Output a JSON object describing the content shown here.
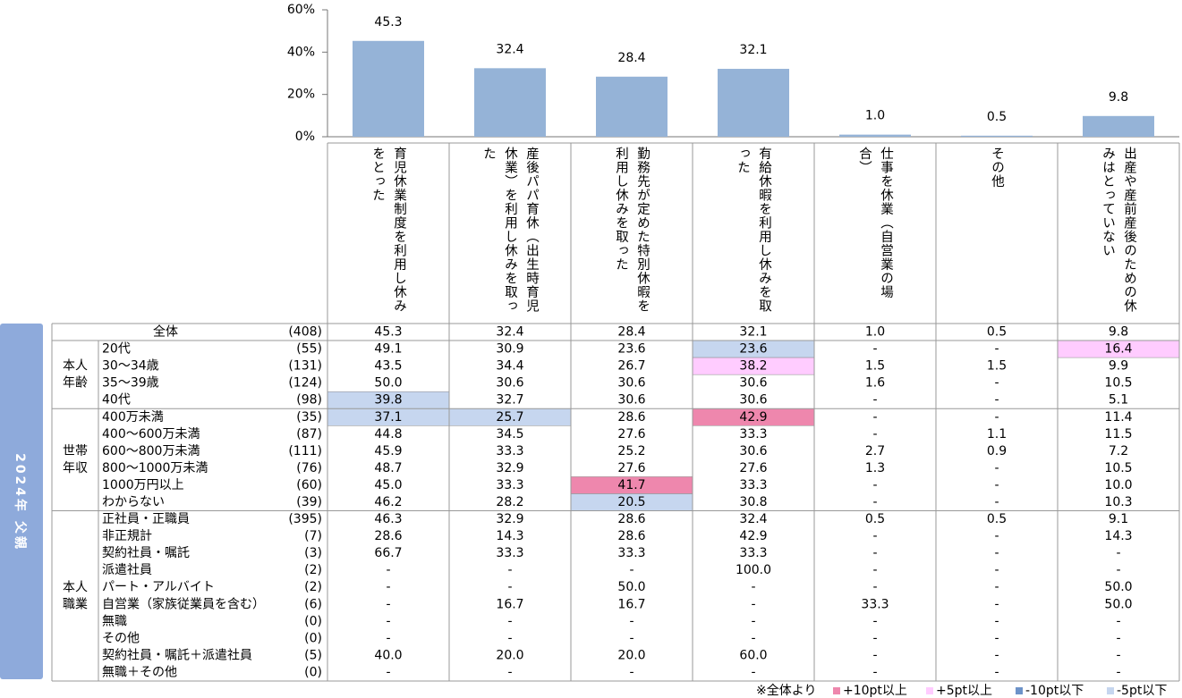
{
  "chart_data": {
    "type": "bar",
    "categories": [
      "育児休業制度を利用し休みをとった",
      "産後パパ育休（出生時育児休業）を利用し休みを取った",
      "勤務先が定めた特別休暇を利用し休みを取った",
      "有給休暇を利用し休みを取った",
      "仕事を休業（自営業の場合）",
      "その他",
      "出産や産前産後のための休みはとっていない"
    ],
    "values": [
      45.3,
      32.4,
      28.4,
      32.1,
      1.0,
      0.5,
      9.8
    ],
    "value_labels": [
      "45.3",
      "32.4",
      "28.4",
      "32.1",
      "1.0",
      "0.5",
      "9.8"
    ],
    "color": "#95b3d7",
    "ylim": [
      0,
      60
    ],
    "yticks": [
      {
        "value": 0,
        "label": "0%"
      },
      {
        "value": 20,
        "label": "20%"
      },
      {
        "value": 40,
        "label": "40%"
      },
      {
        "value": 60,
        "label": "60%"
      }
    ]
  },
  "side_label": "2024年 父親",
  "legend": {
    "title": "※全体より",
    "items": [
      {
        "name": "+10pt以上",
        "color": "#ee87ad"
      },
      {
        "name": "+5pt以上",
        "color": "#ffccff"
      },
      {
        "name": "-10pt以下",
        "color": "#6d93c9"
      },
      {
        "name": "-5pt以下",
        "color": "#c6d6ef"
      }
    ]
  },
  "table": {
    "total": {
      "label": "全体",
      "n": "(408)",
      "values": [
        "45.3",
        "32.4",
        "28.4",
        "32.1",
        "1.0",
        "0.5",
        "9.8"
      ]
    },
    "groups": [
      {
        "label": [
          "本人",
          "年齢"
        ],
        "rows": [
          {
            "label": "20代",
            "n": "(55)",
            "values": [
              "49.1",
              "30.9",
              "23.6",
              "23.6",
              "-",
              "-",
              "16.4"
            ],
            "highlights": [
              null,
              null,
              null,
              3,
              null,
              null,
              1
            ]
          },
          {
            "label": "30～34歳",
            "n": "(131)",
            "values": [
              "43.5",
              "34.4",
              "26.7",
              "38.2",
              "1.5",
              "1.5",
              "9.9"
            ],
            "highlights": [
              null,
              null,
              null,
              1,
              null,
              null,
              null
            ]
          },
          {
            "label": "35～39歳",
            "n": "(124)",
            "values": [
              "50.0",
              "30.6",
              "30.6",
              "30.6",
              "1.6",
              "-",
              "10.5"
            ]
          },
          {
            "label": "40代",
            "n": "(98)",
            "values": [
              "39.8",
              "32.7",
              "30.6",
              "30.6",
              "-",
              "-",
              "5.1"
            ],
            "highlights": [
              3,
              null,
              null,
              null,
              null,
              null,
              null
            ]
          }
        ]
      },
      {
        "label": [
          "世帯",
          "年収"
        ],
        "rows": [
          {
            "label": "400万未満",
            "n": "(35)",
            "values": [
              "37.1",
              "25.7",
              "28.6",
              "42.9",
              "-",
              "-",
              "11.4"
            ],
            "highlights": [
              3,
              3,
              null,
              0,
              null,
              null,
              null
            ]
          },
          {
            "label": "400～600万未満",
            "n": "(87)",
            "values": [
              "44.8",
              "34.5",
              "27.6",
              "33.3",
              "-",
              "1.1",
              "11.5"
            ]
          },
          {
            "label": "600～800万未満",
            "n": "(111)",
            "values": [
              "45.9",
              "33.3",
              "25.2",
              "30.6",
              "2.7",
              "0.9",
              "7.2"
            ]
          },
          {
            "label": "800～1000万未満",
            "n": "(76)",
            "values": [
              "48.7",
              "32.9",
              "27.6",
              "27.6",
              "1.3",
              "-",
              "10.5"
            ]
          },
          {
            "label": "1000万円以上",
            "n": "(60)",
            "values": [
              "45.0",
              "33.3",
              "41.7",
              "33.3",
              "-",
              "-",
              "10.0"
            ],
            "highlights": [
              null,
              null,
              0,
              null,
              null,
              null,
              null
            ]
          },
          {
            "label": "わからない",
            "n": "(39)",
            "values": [
              "46.2",
              "28.2",
              "20.5",
              "30.8",
              "-",
              "-",
              "10.3"
            ],
            "highlights": [
              null,
              null,
              3,
              null,
              null,
              null,
              null
            ]
          }
        ]
      },
      {
        "label": [
          "本人",
          "職業"
        ],
        "rows": [
          {
            "label": "正社員・正職員",
            "n": "(395)",
            "values": [
              "46.3",
              "32.9",
              "28.6",
              "32.4",
              "0.5",
              "0.5",
              "9.1"
            ]
          },
          {
            "label": "非正規計",
            "n": "(7)",
            "values": [
              "28.6",
              "14.3",
              "28.6",
              "42.9",
              "-",
              "-",
              "14.3"
            ]
          },
          {
            "label": "契約社員・嘱託",
            "n": "(3)",
            "values": [
              "66.7",
              "33.3",
              "33.3",
              "33.3",
              "-",
              "-",
              "-"
            ]
          },
          {
            "label": "派遣社員",
            "n": "(2)",
            "values": [
              "-",
              "-",
              "-",
              "100.0",
              "-",
              "-",
              "-"
            ]
          },
          {
            "label": "パート・アルバイト",
            "n": "(2)",
            "values": [
              "-",
              "-",
              "50.0",
              "-",
              "-",
              "-",
              "50.0"
            ]
          },
          {
            "label": "自営業（家族従業員を含む）",
            "n": "(6)",
            "values": [
              "-",
              "16.7",
              "16.7",
              "-",
              "33.3",
              "-",
              "50.0"
            ]
          },
          {
            "label": "無職",
            "n": "(0)",
            "values": [
              "-",
              "-",
              "-",
              "-",
              "-",
              "-",
              "-"
            ]
          },
          {
            "label": "その他",
            "n": "(0)",
            "values": [
              "-",
              "-",
              "-",
              "-",
              "-",
              "-",
              "-"
            ]
          },
          {
            "label": "契約社員・嘱託＋派遣社員",
            "n": "(5)",
            "values": [
              "40.0",
              "20.0",
              "20.0",
              "60.0",
              "-",
              "-",
              "-"
            ]
          },
          {
            "label": "無職＋その他",
            "n": "(0)",
            "values": [
              "-",
              "-",
              "-",
              "-",
              "-",
              "-",
              "-"
            ]
          }
        ]
      }
    ]
  }
}
